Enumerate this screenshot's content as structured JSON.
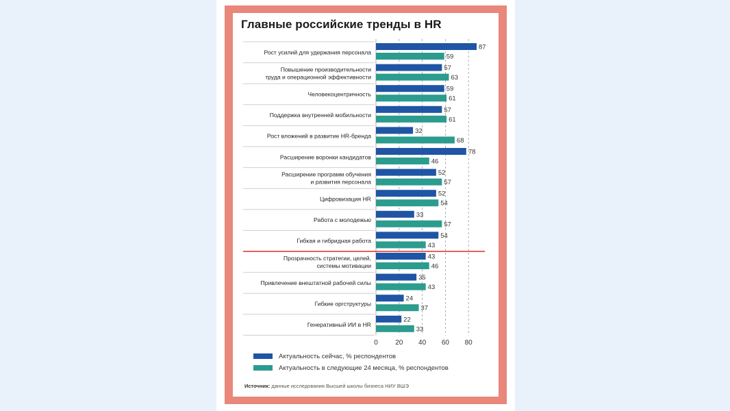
{
  "title": "Главные российские тренды в HR",
  "colors": {
    "now": "#1f55a4",
    "future": "#2b9c8e",
    "divider": "#e02b2b",
    "frame": "#e8877a"
  },
  "legend": {
    "now": "Актуальность сейчас, % респондентов",
    "future": "Актуальность в следующие 24 месяца, % респондентов"
  },
  "source": {
    "label": "Источник:",
    "text": "данные исследования Высшей школы бизнеса НИУ ВШЭ"
  },
  "chart_data": {
    "type": "bar",
    "orientation": "horizontal",
    "categories": [
      "Рост усилий для удержания персонала",
      "Повышение производительности\nтруда и операционной эффективности",
      "Человекоцентричность",
      "Поддержка внутренней мобильности",
      "Рост вложений в развитие HR-бренда",
      "Расширение воронки кандидатов",
      "Расширение программ обучения\nи развития персонала",
      "Цифровизация HR",
      "Работа с молодежью",
      "Гибкая и гибридная работа",
      "Прозрачность стратегии, целей,\nсистемы мотивации",
      "Привлечение внештатной рабочей силы",
      "Гибкие оргструктуры",
      "Генеративный ИИ в HR"
    ],
    "series": [
      {
        "name": "Актуальность сейчас, % респондентов",
        "values": [
          87,
          57,
          59,
          57,
          32,
          78,
          52,
          52,
          33,
          54,
          43,
          35,
          24,
          22
        ]
      },
      {
        "name": "Актуальность в следующие 24 месяца, % респондентов",
        "values": [
          59,
          63,
          61,
          61,
          68,
          46,
          57,
          54,
          57,
          43,
          46,
          43,
          37,
          33
        ]
      }
    ],
    "xlim": [
      0,
      87
    ],
    "xticks": [
      0,
      20,
      40,
      60,
      80
    ],
    "grid": "dashed vertical at 60 and 80",
    "divider_after_index": 9
  }
}
